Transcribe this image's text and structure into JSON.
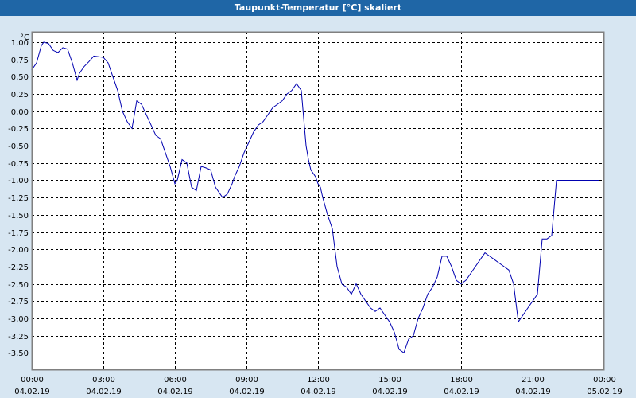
{
  "window": {
    "title": "Taupunkt-Temperatur [°C] skaliert"
  },
  "colors": {
    "titlebar": "#1f66a6",
    "background": "#d7e6f2",
    "plot": "#ffffff",
    "line": "#0000b0",
    "grid": "#000000"
  },
  "chart_data": {
    "type": "line",
    "title": "Taupunkt-Temperatur [°C] skaliert",
    "ylabel": "°C",
    "xlabel": "",
    "ylim": [
      -3.75,
      1.15
    ],
    "xlim_hours": [
      0,
      24
    ],
    "yticks": [
      1.0,
      0.75,
      0.5,
      0.25,
      0.0,
      -0.25,
      -0.5,
      -0.75,
      -1.0,
      -1.25,
      -1.5,
      -1.75,
      -2.0,
      -2.25,
      -2.5,
      -2.75,
      -3.0,
      -3.25,
      -3.5
    ],
    "ytick_labels": [
      "1,00",
      "0,75",
      "0,50",
      "0,25",
      "0,00",
      "-0,25",
      "-0,50",
      "-0,75",
      "-1,00",
      "-1,25",
      "-1,50",
      "-1,75",
      "-2,00",
      "-2,25",
      "-2,50",
      "-2,75",
      "-3,00",
      "-3,25",
      "-3,50"
    ],
    "xticks": [
      {
        "time": "00:00",
        "date": "04.02.19"
      },
      {
        "time": "03:00",
        "date": "04.02.19"
      },
      {
        "time": "06:00",
        "date": "04.02.19"
      },
      {
        "time": "09:00",
        "date": "04.02.19"
      },
      {
        "time": "12:00",
        "date": "04.02.19"
      },
      {
        "time": "15:00",
        "date": "04.02.19"
      },
      {
        "time": "18:00",
        "date": "04.02.19"
      },
      {
        "time": "21:00",
        "date": "04.02.19"
      },
      {
        "time": "00:00",
        "date": "05.02.19"
      }
    ],
    "grid": true,
    "series": [
      {
        "x": [
          0.0,
          0.2,
          0.4,
          0.5,
          0.7,
          0.9,
          1.1,
          1.3,
          1.5,
          1.7,
          1.9,
          2.0,
          2.2,
          2.4,
          2.6,
          2.8,
          3.0,
          3.2,
          3.4,
          3.6,
          3.8,
          4.0,
          4.2,
          4.4,
          4.6,
          4.8,
          5.0,
          5.2,
          5.4,
          5.6,
          5.8,
          6.0,
          6.1,
          6.3,
          6.5,
          6.7,
          6.9,
          7.1,
          7.3,
          7.5,
          7.7,
          8.0,
          8.2,
          8.4,
          8.5,
          8.7,
          8.9,
          9.1,
          9.3,
          9.5,
          9.7,
          9.9,
          10.1,
          10.3,
          10.5,
          10.7,
          10.9,
          11.1,
          11.3,
          11.5,
          11.6,
          11.7,
          11.8,
          11.9,
          12.0,
          12.1,
          12.2,
          12.4,
          12.6,
          12.8,
          13.0,
          13.2,
          13.4,
          13.6,
          13.8,
          14.0,
          14.2,
          14.4,
          14.6,
          14.8,
          15.0,
          15.2,
          15.4,
          15.6,
          15.8,
          16.0,
          16.2,
          16.4,
          16.6,
          16.8,
          17.0,
          17.2,
          17.4,
          17.6,
          17.8,
          18.0,
          18.2,
          18.4,
          18.6,
          18.8,
          19.0,
          19.2,
          19.4,
          19.6,
          19.8,
          20.0,
          20.2,
          20.4,
          20.6,
          20.8,
          21.0,
          21.2,
          21.4,
          21.6,
          21.8,
          22.0,
          22.2,
          22.4,
          22.6,
          22.8,
          23.0,
          23.2,
          23.4,
          23.6,
          23.8,
          24.0
        ],
        "values": [
          0.6,
          0.7,
          0.95,
          1.0,
          0.98,
          0.88,
          0.85,
          0.92,
          0.9,
          0.7,
          0.45,
          0.55,
          0.65,
          0.72,
          0.8,
          0.79,
          0.78,
          0.7,
          0.5,
          0.3,
          0.0,
          -0.15,
          -0.25,
          0.15,
          0.1,
          -0.05,
          -0.2,
          -0.35,
          -0.4,
          -0.6,
          -0.8,
          -1.05,
          -1.0,
          -0.7,
          -0.75,
          -1.1,
          -1.15,
          -0.8,
          -0.82,
          -0.85,
          -1.1,
          -1.25,
          -1.2,
          -1.05,
          -0.95,
          -0.8,
          -0.6,
          -0.45,
          -0.3,
          -0.2,
          -0.15,
          -0.05,
          0.05,
          0.1,
          0.15,
          0.25,
          0.3,
          0.4,
          0.3,
          -0.5,
          -0.7,
          -0.85,
          -0.9,
          -0.95,
          -1.05,
          -1.1,
          -1.25,
          -1.5,
          -1.7,
          -2.25,
          -2.5,
          -2.55,
          -2.65,
          -2.5,
          -2.65,
          -2.75,
          -2.85,
          -2.9,
          -2.85,
          -2.95,
          -3.05,
          -3.2,
          -3.45,
          -3.5,
          -3.3,
          -3.25,
          -3.0,
          -2.85,
          -2.65,
          -2.55,
          -2.4,
          -2.1,
          -2.1,
          -2.25,
          -2.45,
          -2.5,
          -2.45,
          -2.35,
          -2.25,
          -2.15,
          -2.05,
          -2.1,
          -2.15,
          -2.2,
          -2.25,
          -2.3,
          -2.5,
          -3.05,
          -2.95,
          -2.85,
          -2.75,
          -2.65,
          -1.85,
          -1.85,
          -1.8,
          -1.0,
          -1.0,
          -1.0,
          -1.0,
          -1.0,
          -1.0,
          -1.0,
          -1.0,
          -1.0,
          -1.0,
          -1.0
        ]
      }
    ]
  }
}
